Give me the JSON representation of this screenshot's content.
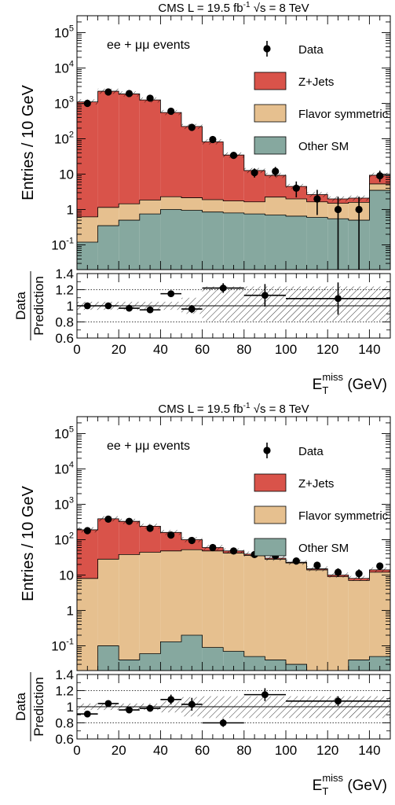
{
  "chart_data": [
    {
      "type": "bar",
      "subtype": "stacked-histogram-log",
      "title": "CMS  L = 19.5 fb-1   √s = 8 TeV",
      "header": {
        "experiment": "CMS",
        "lumi_label": "L = 19.5 fb",
        "lumi_exp": "-1",
        "energy_label": "s = 8 TeV"
      },
      "annotation": "ee + μμ events",
      "ylabel": "Entries / 10 GeV",
      "ylim": [
        0.02,
        300000
      ],
      "yscale": "log",
      "xlim": [
        0,
        150
      ],
      "bin_edges": [
        0,
        10,
        20,
        30,
        40,
        50,
        60,
        70,
        80,
        90,
        100,
        110,
        120,
        130,
        140,
        150
      ],
      "y_ticks": [
        {
          "v": 0.1,
          "base": "10",
          "exp": "-1"
        },
        {
          "v": 1,
          "base": "1",
          "exp": ""
        },
        {
          "v": 10,
          "base": "10",
          "exp": ""
        },
        {
          "v": 100,
          "base": "10",
          "exp": "2"
        },
        {
          "v": 1000,
          "base": "10",
          "exp": "3"
        },
        {
          "v": 10000,
          "base": "10",
          "exp": "4"
        },
        {
          "v": 100000,
          "base": "10",
          "exp": "5"
        }
      ],
      "legend": [
        {
          "label": "Data",
          "kind": "marker"
        },
        {
          "label": "Z+Jets",
          "color": "#d9534a"
        },
        {
          "label": "Flavor symmetric",
          "color": "#e6c08f"
        },
        {
          "label": "Other SM",
          "color": "#86a89f"
        }
      ],
      "legend_placement": "top-right",
      "series": [
        {
          "name": "Other SM",
          "color": "#86a89f",
          "values": [
            0.12,
            0.35,
            0.5,
            0.75,
            1.0,
            0.95,
            0.85,
            0.8,
            0.75,
            0.7,
            0.65,
            0.6,
            0.55,
            0.5,
            3.5
          ]
        },
        {
          "name": "Flavor symmetric",
          "color": "#e6c08f",
          "values": [
            0.5,
            0.8,
            0.95,
            1.1,
            1.3,
            1.2,
            1.05,
            0.95,
            0.9,
            1.55,
            1.35,
            1.05,
            0.95,
            1.1,
            1.8
          ]
        },
        {
          "name": "Z+Jets",
          "color": "#d9534a",
          "values": [
            1100,
            2200,
            1850,
            1250,
            550,
            220,
            80,
            33,
            11,
            7,
            2.5,
            1.0,
            0.5,
            0.5,
            4.0
          ]
        }
      ],
      "data_points": [
        {
          "x": 5,
          "y": 1000,
          "lo": 100,
          "hi": 100
        },
        {
          "x": 15,
          "y": 2100,
          "lo": 150,
          "hi": 150
        },
        {
          "x": 25,
          "y": 1900,
          "lo": 150,
          "hi": 150
        },
        {
          "x": 35,
          "y": 1400,
          "lo": 120,
          "hi": 120
        },
        {
          "x": 45,
          "y": 600,
          "lo": 60,
          "hi": 60
        },
        {
          "x": 55,
          "y": 210,
          "lo": 25,
          "hi": 25
        },
        {
          "x": 65,
          "y": 95,
          "lo": 10,
          "hi": 10
        },
        {
          "x": 75,
          "y": 34,
          "lo": 6,
          "hi": 6
        },
        {
          "x": 85,
          "y": 11,
          "lo": 3,
          "hi": 3.5
        },
        {
          "x": 95,
          "y": 12,
          "lo": 3.5,
          "hi": 4
        },
        {
          "x": 105,
          "y": 4,
          "lo": 1.8,
          "hi": 2.2
        },
        {
          "x": 115,
          "y": 2,
          "lo": 1.3,
          "hi": 1.6
        },
        {
          "x": 125,
          "y": 1,
          "lo": 0.98,
          "hi": 1.3
        },
        {
          "x": 135,
          "y": 1,
          "lo": 0.98,
          "hi": 1.3
        },
        {
          "x": 145,
          "y": 9,
          "lo": 3,
          "hi": 3.5
        }
      ],
      "ratio": {
        "ylabel_top": "Data",
        "ylabel_bottom": "Prediction",
        "ylim": [
          0.6,
          1.4
        ],
        "y_ticks": [
          "0.6",
          "0.8",
          "1",
          "1.2",
          "1.4"
        ],
        "bands": [
          {
            "x0": 0,
            "x1": 50,
            "lo": 0.95,
            "hi": 1.05
          },
          {
            "x0": 50,
            "x1": 60,
            "lo": 0.9,
            "hi": 1.1
          },
          {
            "x0": 60,
            "x1": 150,
            "lo": 0.81,
            "hi": 1.24
          }
        ],
        "points": [
          {
            "x0": 0,
            "x1": 10,
            "y": 1.0,
            "e": 0.02
          },
          {
            "x0": 10,
            "x1": 20,
            "y": 1.0,
            "e": 0.02
          },
          {
            "x0": 20,
            "x1": 30,
            "y": 0.97,
            "e": 0.025
          },
          {
            "x0": 30,
            "x1": 40,
            "y": 0.95,
            "e": 0.03
          },
          {
            "x0": 40,
            "x1": 50,
            "y": 1.15,
            "e": 0.03
          },
          {
            "x0": 50,
            "x1": 60,
            "y": 0.96,
            "e": 0.05
          },
          {
            "x0": 60,
            "x1": 80,
            "y": 1.22,
            "e": 0.06
          },
          {
            "x0": 80,
            "x1": 100,
            "y": 1.13,
            "e": 0.14
          },
          {
            "x0": 100,
            "x1": 150,
            "y": 1.09,
            "e": 0.2
          }
        ]
      },
      "xlabel": {
        "main": "E",
        "sub": "T",
        "sup": "miss",
        "unit": "(GeV)"
      },
      "x_ticks": [
        "0",
        "20",
        "40",
        "60",
        "80",
        "100",
        "120",
        "140"
      ]
    },
    {
      "type": "bar",
      "subtype": "stacked-histogram-log",
      "title": "CMS  L = 19.5 fb-1   √s = 8 TeV",
      "header": {
        "experiment": "CMS",
        "lumi_label": "L = 19.5 fb",
        "lumi_exp": "-1",
        "energy_label": "s = 8 TeV"
      },
      "annotation": "ee + μμ events",
      "ylabel": "Entries / 10 GeV",
      "ylim": [
        0.02,
        300000
      ],
      "yscale": "log",
      "xlim": [
        0,
        150
      ],
      "bin_edges": [
        0,
        10,
        20,
        30,
        40,
        50,
        60,
        70,
        80,
        90,
        100,
        110,
        120,
        130,
        140,
        150
      ],
      "y_ticks": [
        {
          "v": 0.1,
          "base": "10",
          "exp": "-1"
        },
        {
          "v": 1,
          "base": "1",
          "exp": ""
        },
        {
          "v": 10,
          "base": "10",
          "exp": ""
        },
        {
          "v": 100,
          "base": "10",
          "exp": "2"
        },
        {
          "v": 1000,
          "base": "10",
          "exp": "3"
        },
        {
          "v": 10000,
          "base": "10",
          "exp": "4"
        },
        {
          "v": 100000,
          "base": "10",
          "exp": "5"
        }
      ],
      "legend": [
        {
          "label": "Data",
          "kind": "marker"
        },
        {
          "label": "Z+Jets",
          "color": "#d9534a"
        },
        {
          "label": "Flavor symmetric",
          "color": "#e6c08f"
        },
        {
          "label": "Other SM",
          "color": "#86a89f"
        }
      ],
      "legend_placement": "top-right",
      "series": [
        {
          "name": "Other SM",
          "color": "#86a89f",
          "values": [
            0.02,
            0.1,
            0.04,
            0.06,
            0.13,
            0.2,
            0.09,
            0.07,
            0.05,
            0.04,
            0.03,
            0.02,
            0.02,
            0.04,
            0.05
          ]
        },
        {
          "name": "Flavor symmetric",
          "color": "#e6c08f",
          "values": [
            8,
            28,
            38,
            44,
            48,
            52,
            48,
            42,
            36,
            28,
            22,
            14,
            9,
            7,
            12
          ]
        },
        {
          "name": "Z+Jets",
          "color": "#d9534a",
          "values": [
            182,
            362,
            292,
            196,
            112,
            48,
            12,
            6,
            3,
            2,
            1,
            1,
            1,
            1,
            2
          ]
        }
      ],
      "data_points": [
        {
          "x": 5,
          "y": 180,
          "lo": 15,
          "hi": 15
        },
        {
          "x": 15,
          "y": 380,
          "lo": 25,
          "hi": 25
        },
        {
          "x": 25,
          "y": 330,
          "lo": 20,
          "hi": 20
        },
        {
          "x": 35,
          "y": 210,
          "lo": 15,
          "hi": 15
        },
        {
          "x": 45,
          "y": 135,
          "lo": 12,
          "hi": 12
        },
        {
          "x": 55,
          "y": 95,
          "lo": 10,
          "hi": 10
        },
        {
          "x": 65,
          "y": 60,
          "lo": 8,
          "hi": 8
        },
        {
          "x": 75,
          "y": 48,
          "lo": 7,
          "hi": 7
        },
        {
          "x": 85,
          "y": 38,
          "lo": 6,
          "hi": 6
        },
        {
          "x": 95,
          "y": 35,
          "lo": 6,
          "hi": 6
        },
        {
          "x": 105,
          "y": 25,
          "lo": 5,
          "hi": 5
        },
        {
          "x": 115,
          "y": 19,
          "lo": 4,
          "hi": 4.5
        },
        {
          "x": 125,
          "y": 12,
          "lo": 3,
          "hi": 3.5
        },
        {
          "x": 135,
          "y": 11,
          "lo": 3,
          "hi": 3.5
        },
        {
          "x": 145,
          "y": 18,
          "lo": 4,
          "hi": 4.5
        }
      ],
      "ratio": {
        "ylabel_top": "Data",
        "ylabel_bottom": "Prediction",
        "ylim": [
          0.6,
          1.4
        ],
        "y_ticks": [
          "0.6",
          "0.8",
          "1",
          "1.2",
          "1.4"
        ],
        "bands": [
          {
            "x0": 0,
            "x1": 40,
            "lo": 0.96,
            "hi": 1.04
          },
          {
            "x0": 40,
            "x1": 50,
            "lo": 0.93,
            "hi": 1.07
          },
          {
            "x0": 50,
            "x1": 60,
            "lo": 0.88,
            "hi": 1.12
          },
          {
            "x0": 60,
            "x1": 150,
            "lo": 0.86,
            "hi": 1.13
          }
        ],
        "points": [
          {
            "x0": 0,
            "x1": 10,
            "y": 0.91,
            "e": 0.04
          },
          {
            "x0": 10,
            "x1": 20,
            "y": 1.04,
            "e": 0.03
          },
          {
            "x0": 20,
            "x1": 30,
            "y": 0.96,
            "e": 0.03
          },
          {
            "x0": 30,
            "x1": 40,
            "y": 0.98,
            "e": 0.04
          },
          {
            "x0": 40,
            "x1": 50,
            "y": 1.09,
            "e": 0.06
          },
          {
            "x0": 50,
            "x1": 60,
            "y": 1.03,
            "e": 0.08
          },
          {
            "x0": 60,
            "x1": 80,
            "y": 0.8,
            "e": 0.05
          },
          {
            "x0": 80,
            "x1": 100,
            "y": 1.15,
            "e": 0.08
          },
          {
            "x0": 100,
            "x1": 150,
            "y": 1.07,
            "e": 0.06
          }
        ]
      },
      "xlabel": {
        "main": "E",
        "sub": "T",
        "sup": "miss",
        "unit": "(GeV)"
      },
      "x_ticks": [
        "0",
        "20",
        "40",
        "60",
        "80",
        "100",
        "120",
        "140"
      ]
    }
  ]
}
